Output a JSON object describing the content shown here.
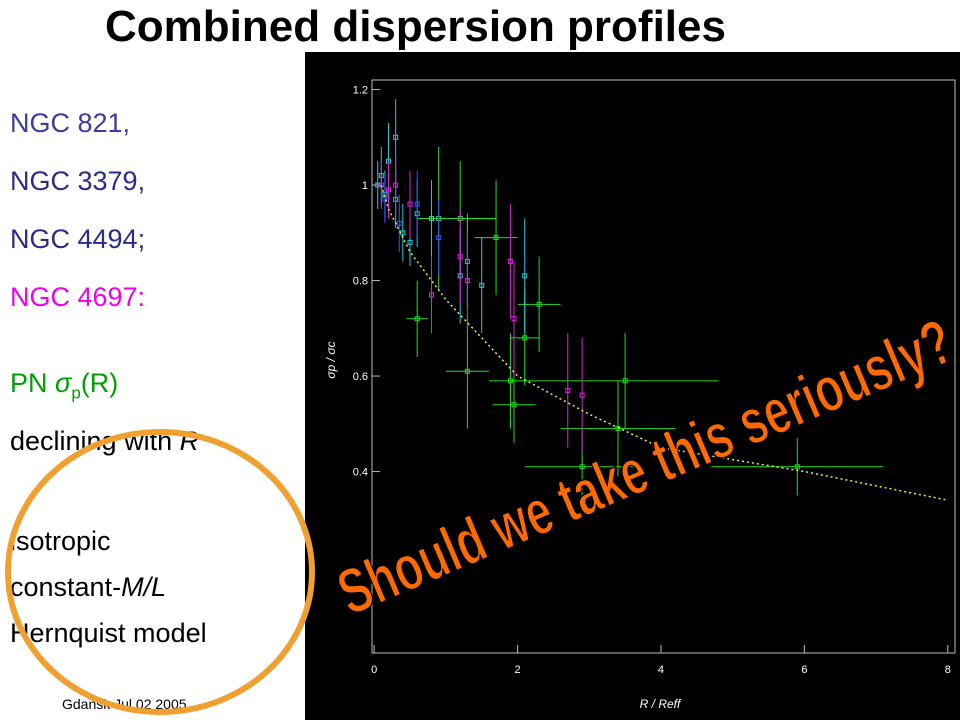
{
  "title": "Combined dispersion profiles",
  "galaxies": [
    "NGC 821,",
    "NGC 3379,",
    "NGC 4494;",
    "NGC 4697:"
  ],
  "pn_line": {
    "prefix": "PN ",
    "symbol": "σ",
    "subscript": "p",
    "argument": "(R)"
  },
  "declining": {
    "text": "declining with ",
    "variable": "R"
  },
  "model": {
    "line1": "isotropic",
    "line2_prefix": "constant-",
    "line2_var": "M/L",
    "line3": "Hernquist model"
  },
  "footer": "Gdansk Jul 02 2005",
  "overlay": "Should we take this seriously?",
  "chart_data": {
    "type": "scatter",
    "x_label": "R / Reff",
    "y_label": "σp / σc",
    "xlim": [
      -0.03,
      8.1
    ],
    "ylim": [
      0.02,
      1.22
    ],
    "xticks": [
      0,
      2,
      4,
      6,
      8
    ],
    "yticks": [
      0.4,
      0.6,
      0.8,
      1,
      1.2
    ],
    "series": [
      {
        "color": "#22dd22",
        "x": [
          0.6,
          0.9,
          1.2,
          1.3,
          1.7,
          1.9,
          1.95,
          2.3,
          2.1,
          2.9,
          3.5,
          3.4,
          5.9
        ],
        "values": [
          0.72,
          0.93,
          0.93,
          0.61,
          0.89,
          0.59,
          0.54,
          0.75,
          0.68,
          0.41,
          0.59,
          0.49,
          0.41
        ],
        "errors": [
          0.08,
          0.15,
          0.12,
          0.12,
          0.12,
          0.1,
          0.08,
          0.1,
          0.1,
          0.08,
          0.1,
          0.1,
          0.06
        ],
        "xerr": [
          0.15,
          0.3,
          0.5,
          0.3,
          0.3,
          0.3,
          0.3,
          0.3,
          0.2,
          0.8,
          1.3,
          0.8,
          1.2
        ]
      },
      {
        "color": "#22ccdd",
        "x": [
          0.05,
          0.1,
          0.15,
          0.2,
          0.3,
          0.4,
          0.5,
          0.6,
          0.8,
          1.2,
          1.3,
          1.5,
          2.1,
          0.3
        ],
        "values": [
          1.0,
          1.02,
          0.98,
          1.05,
          0.97,
          0.9,
          0.88,
          0.94,
          0.93,
          0.81,
          0.84,
          0.79,
          0.81,
          1.1
        ],
        "errors": [
          0.05,
          0.06,
          0.05,
          0.08,
          0.06,
          0.06,
          0.05,
          0.07,
          0.08,
          0.1,
          0.1,
          0.1,
          0.12,
          0.08
        ]
      },
      {
        "color": "#dd22dd",
        "x": [
          0.1,
          0.2,
          0.3,
          0.5,
          0.8,
          1.2,
          1.3,
          1.9,
          1.95,
          2.7,
          2.9
        ],
        "values": [
          1.0,
          0.99,
          1.0,
          0.96,
          0.77,
          0.85,
          0.8,
          0.84,
          0.72,
          0.57,
          0.56
        ],
        "errors": [
          0.05,
          0.06,
          0.06,
          0.07,
          0.08,
          0.1,
          0.1,
          0.12,
          0.12,
          0.12,
          0.12
        ]
      },
      {
        "color": "#3355ff",
        "x": [
          0.15,
          0.35,
          0.6,
          0.9
        ],
        "values": [
          0.97,
          0.92,
          0.96,
          0.89
        ],
        "errors": [
          0.05,
          0.06,
          0.07,
          0.08
        ]
      },
      {
        "type": "line",
        "color": "#eeee33",
        "x": [
          0.1,
          0.2,
          0.5,
          1,
          2,
          3,
          4,
          6,
          8
        ],
        "values": [
          1.0,
          0.95,
          0.86,
          0.76,
          0.6,
          0.52,
          0.45,
          0.4,
          0.34
        ]
      }
    ]
  }
}
